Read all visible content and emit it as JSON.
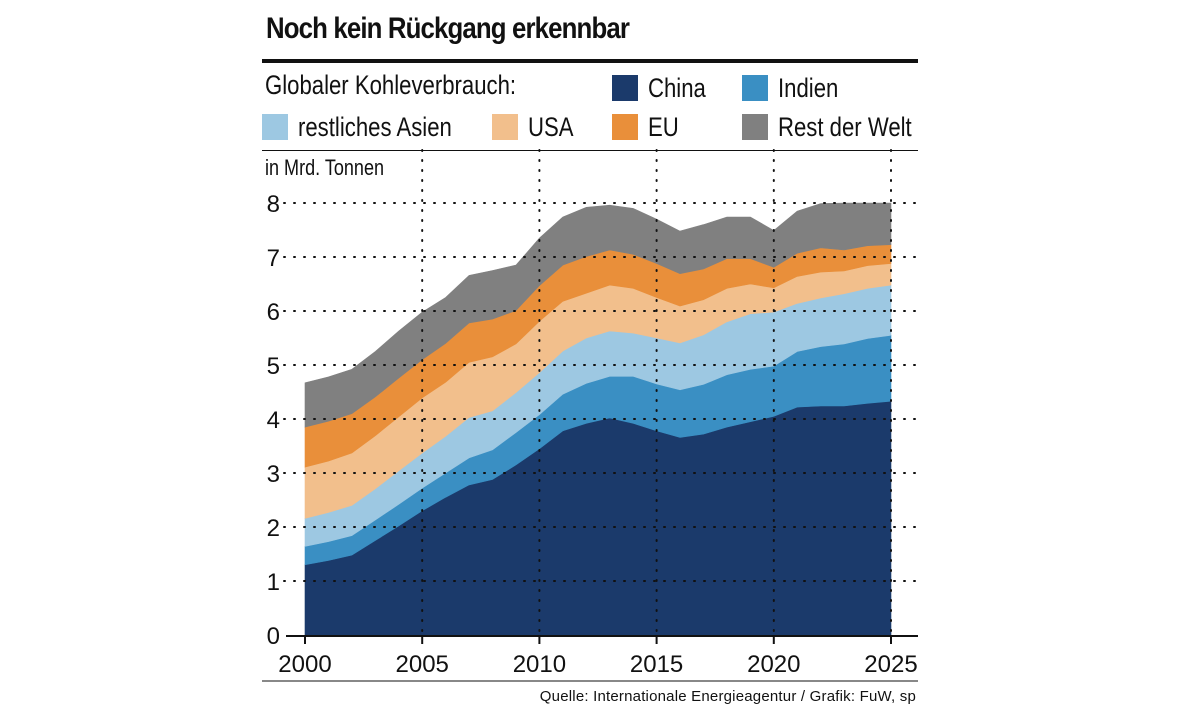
{
  "title": "Noch kein Rückgang erkennbar",
  "subtitle": "Globaler Kohleverbrauch:",
  "unit_label": "in Mrd. Tonnen",
  "source": "Quelle: Internationale Energieagentur / Grafik: FuW, sp",
  "legend": [
    {
      "label": "China",
      "color": "#1b3a6b"
    },
    {
      "label": "Indien",
      "color": "#3a8fc3"
    },
    {
      "label": "restliches Asien",
      "color": "#9dc8e2"
    },
    {
      "label": "USA",
      "color": "#f2bf8c"
    },
    {
      "label": "EU",
      "color": "#e98f3a"
    },
    {
      "label": "Rest der Welt",
      "color": "#808080"
    }
  ],
  "chart_data": {
    "type": "area",
    "stacked": true,
    "title": "Noch kein Rückgang erkennbar",
    "ylabel": "in Mrd. Tonnen",
    "xlim": [
      2000,
      2025
    ],
    "ylim": [
      0,
      8
    ],
    "x_ticks": [
      "2000",
      "2005",
      "2010",
      "2015",
      "2020",
      "2025"
    ],
    "y_ticks": [
      "0",
      "1",
      "2",
      "3",
      "4",
      "5",
      "6",
      "7",
      "8"
    ],
    "grid": true,
    "x": [
      2000,
      2001,
      2002,
      2003,
      2004,
      2005,
      2006,
      2007,
      2008,
      2009,
      2010,
      2011,
      2012,
      2013,
      2014,
      2015,
      2016,
      2017,
      2018,
      2019,
      2020,
      2021,
      2022,
      2023,
      2024,
      2025
    ],
    "series": [
      {
        "name": "China",
        "color": "#1b3a6b",
        "values": [
          1.3,
          1.38,
          1.48,
          1.75,
          2.02,
          2.3,
          2.55,
          2.78,
          2.88,
          3.15,
          3.45,
          3.78,
          3.92,
          4.02,
          3.92,
          3.78,
          3.66,
          3.72,
          3.85,
          3.95,
          4.05,
          4.22,
          4.24,
          4.24,
          4.29,
          4.33
        ]
      },
      {
        "name": "Indien",
        "color": "#3a8fc3",
        "values": [
          0.34,
          0.35,
          0.36,
          0.38,
          0.4,
          0.42,
          0.45,
          0.5,
          0.55,
          0.6,
          0.63,
          0.68,
          0.74,
          0.77,
          0.87,
          0.87,
          0.88,
          0.92,
          0.97,
          0.97,
          0.93,
          1.03,
          1.1,
          1.15,
          1.2,
          1.22
        ]
      },
      {
        "name": "restliches Asien",
        "color": "#9dc8e2",
        "values": [
          0.52,
          0.54,
          0.56,
          0.58,
          0.62,
          0.65,
          0.68,
          0.75,
          0.72,
          0.74,
          0.78,
          0.8,
          0.84,
          0.84,
          0.8,
          0.85,
          0.87,
          0.92,
          0.98,
          1.03,
          1.0,
          0.89,
          0.9,
          0.93,
          0.93,
          0.93
        ]
      },
      {
        "name": "USA",
        "color": "#f2bf8c",
        "values": [
          0.95,
          0.95,
          0.97,
          0.98,
          1.0,
          1.02,
          1.0,
          1.02,
          1.0,
          0.9,
          0.95,
          0.92,
          0.83,
          0.85,
          0.83,
          0.75,
          0.68,
          0.65,
          0.62,
          0.55,
          0.45,
          0.5,
          0.48,
          0.42,
          0.42,
          0.4
        ]
      },
      {
        "name": "EU",
        "color": "#e98f3a",
        "values": [
          0.74,
          0.74,
          0.73,
          0.72,
          0.72,
          0.71,
          0.72,
          0.73,
          0.7,
          0.62,
          0.66,
          0.67,
          0.68,
          0.65,
          0.63,
          0.63,
          0.6,
          0.57,
          0.55,
          0.47,
          0.38,
          0.43,
          0.45,
          0.39,
          0.37,
          0.35
        ]
      },
      {
        "name": "Rest der Welt",
        "color": "#808080",
        "values": [
          0.82,
          0.82,
          0.82,
          0.84,
          0.87,
          0.88,
          0.85,
          0.88,
          0.9,
          0.84,
          0.88,
          0.89,
          0.91,
          0.83,
          0.85,
          0.82,
          0.79,
          0.82,
          0.77,
          0.77,
          0.68,
          0.78,
          0.82,
          0.87,
          0.79,
          0.77
        ]
      }
    ]
  }
}
